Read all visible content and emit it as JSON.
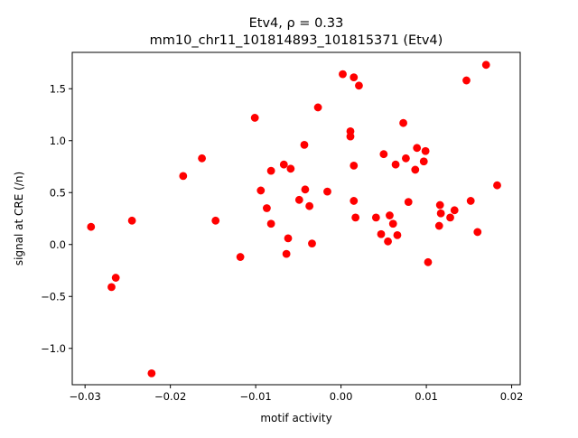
{
  "chart_data": {
    "type": "scatter",
    "title_line1": "Etv4, ρ = 0.33",
    "title_line2": "mm10_chr11_101814893_101815371 (Etv4)",
    "xlabel": "motif activity",
    "ylabel": "signal at CRE (/n)",
    "xlim": [
      -0.0315,
      0.021
    ],
    "ylim": [
      -1.35,
      1.85
    ],
    "x_ticks": [
      -0.03,
      -0.02,
      -0.01,
      0.0,
      0.01,
      0.02
    ],
    "x_tick_labels": [
      "−0.03",
      "−0.02",
      "−0.01",
      "0.00",
      "0.01",
      "0.02"
    ],
    "y_ticks": [
      -1.0,
      -0.5,
      0.0,
      0.5,
      1.0,
      1.5
    ],
    "y_tick_labels": [
      "−1.0",
      "−0.5",
      "0.0",
      "0.5",
      "1.0",
      "1.5"
    ],
    "grid": false,
    "marker_color": "#ff0000",
    "series": [
      {
        "points": [
          [
            -0.0293,
            0.17
          ],
          [
            -0.0269,
            -0.41
          ],
          [
            -0.0264,
            -0.32
          ],
          [
            -0.0245,
            0.23
          ],
          [
            -0.0222,
            -1.24
          ],
          [
            -0.0185,
            0.66
          ],
          [
            -0.0163,
            0.83
          ],
          [
            -0.0147,
            0.23
          ],
          [
            -0.0118,
            -0.12
          ],
          [
            -0.0101,
            1.22
          ],
          [
            -0.0094,
            0.52
          ],
          [
            -0.0087,
            0.35
          ],
          [
            -0.0082,
            0.71
          ],
          [
            -0.0082,
            0.2
          ],
          [
            -0.0067,
            0.77
          ],
          [
            -0.0064,
            -0.09
          ],
          [
            -0.0062,
            0.06
          ],
          [
            -0.0059,
            0.73
          ],
          [
            -0.0049,
            0.43
          ],
          [
            -0.0043,
            0.96
          ],
          [
            -0.0042,
            0.53
          ],
          [
            -0.0037,
            0.37
          ],
          [
            -0.0034,
            0.01
          ],
          [
            -0.0027,
            1.32
          ],
          [
            -0.0016,
            0.51
          ],
          [
            0.0002,
            1.64
          ],
          [
            0.0011,
            1.09
          ],
          [
            0.0011,
            1.04
          ],
          [
            0.0015,
            1.61
          ],
          [
            0.0015,
            0.76
          ],
          [
            0.0015,
            0.42
          ],
          [
            0.0017,
            0.26
          ],
          [
            0.0021,
            1.53
          ],
          [
            0.0041,
            0.26
          ],
          [
            0.0047,
            0.1
          ],
          [
            0.005,
            0.87
          ],
          [
            0.0055,
            0.03
          ],
          [
            0.0057,
            0.28
          ],
          [
            0.0061,
            0.2
          ],
          [
            0.0064,
            0.77
          ],
          [
            0.0066,
            0.09
          ],
          [
            0.0073,
            1.17
          ],
          [
            0.0076,
            0.83
          ],
          [
            0.0079,
            0.41
          ],
          [
            0.0087,
            0.72
          ],
          [
            0.0089,
            0.93
          ],
          [
            0.0097,
            0.8
          ],
          [
            0.0099,
            0.9
          ],
          [
            0.0102,
            -0.17
          ],
          [
            0.0115,
            0.18
          ],
          [
            0.0116,
            0.38
          ],
          [
            0.0117,
            0.3
          ],
          [
            0.0128,
            0.26
          ],
          [
            0.0133,
            0.33
          ],
          [
            0.0147,
            1.58
          ],
          [
            0.0152,
            0.42
          ],
          [
            0.016,
            0.12
          ],
          [
            0.017,
            1.73
          ],
          [
            0.0183,
            0.57
          ]
        ]
      }
    ]
  }
}
